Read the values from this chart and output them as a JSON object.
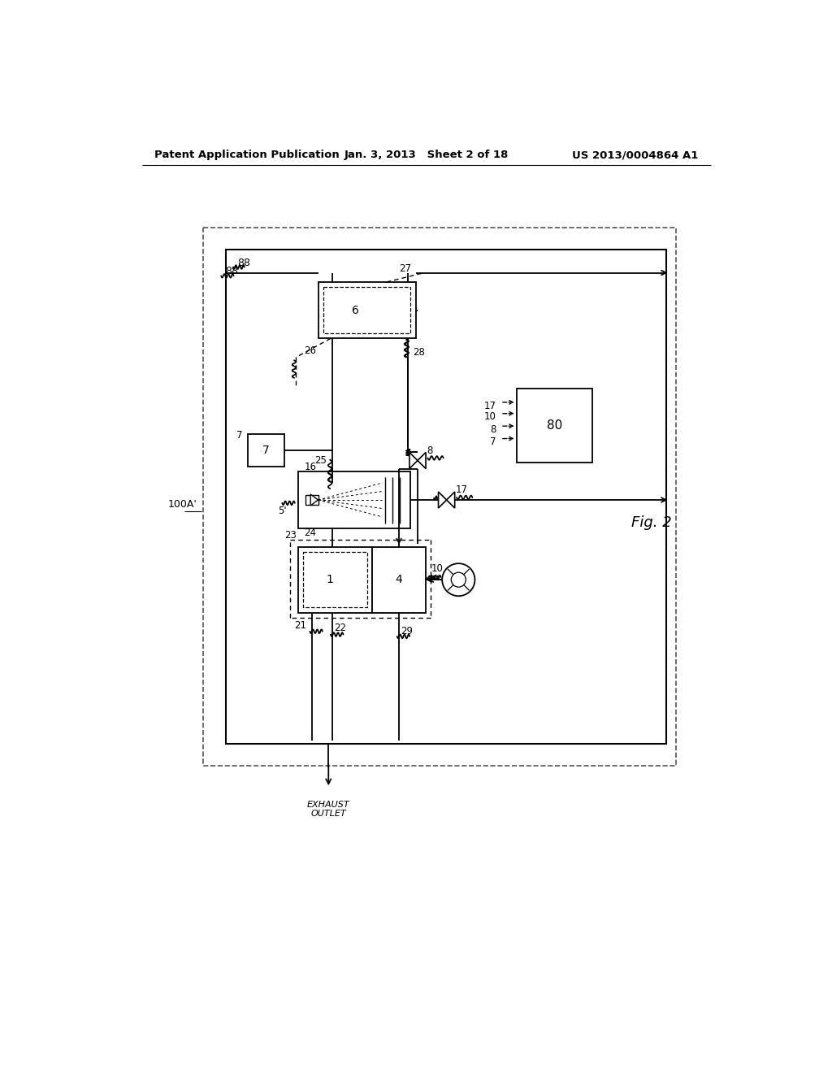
{
  "bg_color": "#ffffff",
  "header_left": "Patent Application Publication",
  "header_center": "Jan. 3, 2013   Sheet 2 of 18",
  "header_right": "US 2013/0004864 A1",
  "fig_label": "Fig. 2",
  "system_label": "100A'"
}
